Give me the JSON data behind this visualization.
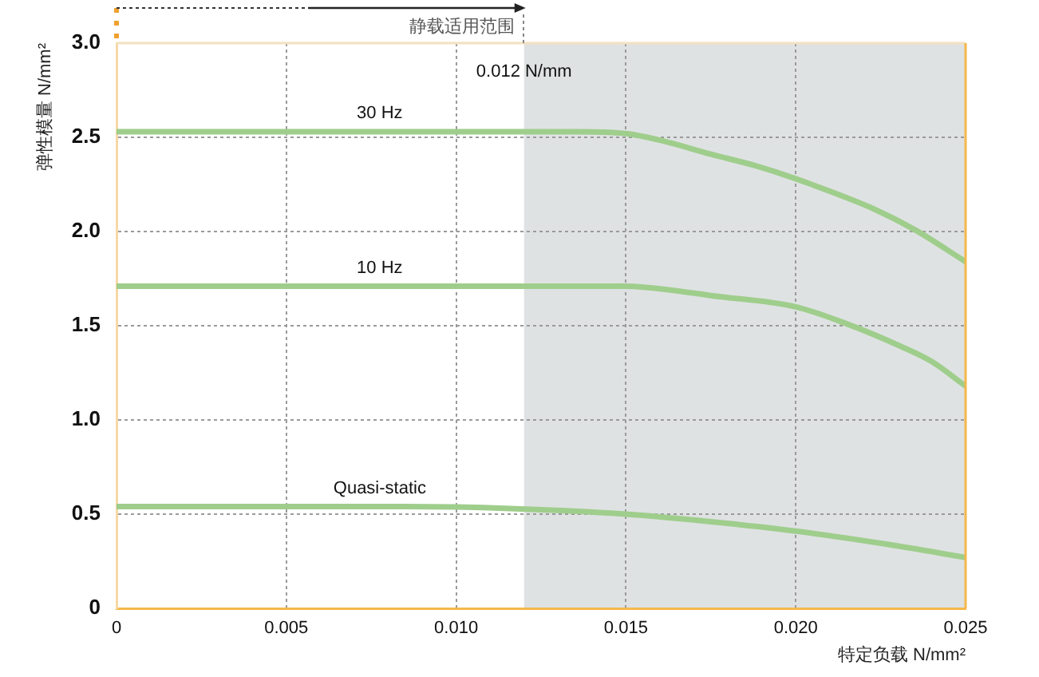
{
  "chart_data": {
    "type": "line",
    "xlabel": "特定负载 N/mm²",
    "ylabel": "弹性模量 N/mm²",
    "annotations": [
      "静载适用范围"
    ],
    "series": [
      {
        "name": "30 Hz",
        "color": "#9fce8c",
        "x": [
          0,
          0.005,
          0.01,
          0.0135,
          0.015,
          0.0161,
          0.0175,
          0.0188,
          0.02,
          0.0223,
          0.0235,
          0.025
        ],
        "values": [
          2.53,
          2.53,
          2.53,
          2.53,
          2.52,
          2.48,
          2.41,
          2.35,
          2.28,
          2.12,
          2.01,
          1.84
        ]
      },
      {
        "name": "10 Hz",
        "color": "#9fce8c",
        "x": [
          0,
          0.005,
          0.01,
          0.015,
          0.0163,
          0.0175,
          0.02,
          0.0215,
          0.0231,
          0.024,
          0.025
        ],
        "values": [
          1.71,
          1.71,
          1.71,
          1.71,
          1.69,
          1.66,
          1.6,
          1.51,
          1.39,
          1.31,
          1.18
        ]
      },
      {
        "name": "Quasi-static",
        "color": "#9fce8c",
        "x": [
          0,
          0.005,
          0.0085,
          0.0116,
          0.015,
          0.0175,
          0.02,
          0.0227,
          0.025
        ],
        "values": [
          0.54,
          0.54,
          0.54,
          0.53,
          0.5,
          0.46,
          0.41,
          0.34,
          0.27
        ]
      }
    ],
    "xlim": [
      0,
      0.025
    ],
    "xticks": [
      0,
      0.005,
      {
        "value": 0.01,
        "label": "0.010"
      },
      0.015,
      {
        "value": 0.02,
        "label": "0.020"
      },
      0.025
    ],
    "ylim": [
      0,
      3
    ],
    "yticks": [
      0,
      0.5,
      {
        "value": 1,
        "label": "1.0"
      },
      1.5,
      {
        "value": 2,
        "label": "2.0"
      },
      2.5,
      {
        "value": 3,
        "label": "3.0"
      }
    ],
    "bands": [
      {
        "axis": "x",
        "from": 0.012,
        "to": 0.025,
        "label": "0.012 N/mm",
        "color": "#dfe2e3"
      }
    ],
    "grid": true,
    "legend": false,
    "marker": "none"
  }
}
